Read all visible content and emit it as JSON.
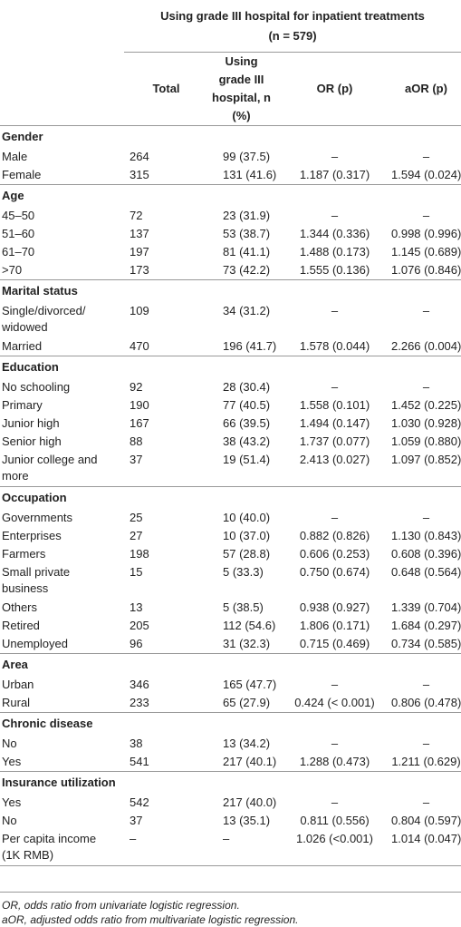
{
  "header": {
    "title": "Using grade III hospital for inpatient treatments",
    "subtitle": "(n = 579)",
    "columns": [
      "Total",
      "Using grade III hospital, n (%)",
      "OR (p)",
      "aOR (p)"
    ]
  },
  "sections": [
    {
      "title": "Gender",
      "rows": [
        {
          "label": "Male",
          "cells": [
            "264",
            "99 (37.5)",
            "–",
            "–"
          ]
        },
        {
          "label": "Female",
          "cells": [
            "315",
            "131 (41.6)",
            "1.187 (0.317)",
            "1.594 (0.024)"
          ]
        }
      ]
    },
    {
      "title": "Age",
      "rows": [
        {
          "label": "45–50",
          "cells": [
            "72",
            "23 (31.9)",
            "–",
            "–"
          ]
        },
        {
          "label": "51–60",
          "cells": [
            "137",
            "53 (38.7)",
            "1.344 (0.336)",
            "0.998 (0.996)"
          ]
        },
        {
          "label": "61–70",
          "cells": [
            "197",
            "81 (41.1)",
            "1.488 (0.173)",
            "1.145 (0.689)"
          ]
        },
        {
          "label": ">70",
          "cells": [
            "173",
            "73 (42.2)",
            "1.555 (0.136)",
            "1.076 (0.846)"
          ]
        }
      ]
    },
    {
      "title": "Marital status",
      "rows": [
        {
          "label": [
            "Single/divorced/",
            "widowed"
          ],
          "cells": [
            "109",
            "34 (31.2)",
            "–",
            "–"
          ]
        },
        {
          "label": "Married",
          "cells": [
            "470",
            "196 (41.7)",
            "1.578 (0.044)",
            "2.266 (0.004)"
          ]
        }
      ]
    },
    {
      "title": "Education",
      "rows": [
        {
          "label": "No schooling",
          "cells": [
            "92",
            "28 (30.4)",
            "–",
            "–"
          ]
        },
        {
          "label": "Primary",
          "cells": [
            "190",
            "77 (40.5)",
            "1.558 (0.101)",
            "1.452 (0.225)"
          ]
        },
        {
          "label": "Junior high",
          "cells": [
            "167",
            "66 (39.5)",
            "1.494 (0.147)",
            "1.030 (0.928)"
          ]
        },
        {
          "label": "Senior high",
          "cells": [
            "88",
            "38 (43.2)",
            "1.737 (0.077)",
            "1.059 (0.880)"
          ]
        },
        {
          "label": [
            "Junior college and",
            "more"
          ],
          "cells": [
            "37",
            "19 (51.4)",
            "2.413 (0.027)",
            "1.097 (0.852)"
          ]
        }
      ]
    },
    {
      "title": "Occupation",
      "rows": [
        {
          "label": "Governments",
          "cells": [
            "25",
            "10 (40.0)",
            "–",
            "–"
          ]
        },
        {
          "label": "Enterprises",
          "cells": [
            "27",
            "10 (37.0)",
            "0.882 (0.826)",
            "1.130 (0.843)"
          ]
        },
        {
          "label": "Farmers",
          "cells": [
            "198",
            "57 (28.8)",
            "0.606 (0.253)",
            "0.608 (0.396)"
          ]
        },
        {
          "label": [
            "Small private",
            "business"
          ],
          "cells": [
            "15",
            "5 (33.3)",
            "0.750 (0.674)",
            "0.648 (0.564)"
          ]
        },
        {
          "label": "Others",
          "cells": [
            "13",
            "5 (38.5)",
            "0.938 (0.927)",
            "1.339 (0.704)"
          ]
        },
        {
          "label": "Retired",
          "cells": [
            "205",
            "112 (54.6)",
            "1.806 (0.171)",
            "1.684 (0.297)"
          ]
        },
        {
          "label": "Unemployed",
          "cells": [
            "96",
            "31 (32.3)",
            "0.715 (0.469)",
            "0.734 (0.585)"
          ]
        }
      ]
    },
    {
      "title": "Area",
      "rows": [
        {
          "label": "Urban",
          "cells": [
            "346",
            "165 (47.7)",
            "–",
            "–"
          ]
        },
        {
          "label": "Rural",
          "cells": [
            "233",
            "65 (27.9)",
            "0.424 (< 0.001)",
            "0.806 (0.478)"
          ]
        }
      ]
    },
    {
      "title": "Chronic disease",
      "rows": [
        {
          "label": "No",
          "cells": [
            "38",
            "13 (34.2)",
            "–",
            "–"
          ]
        },
        {
          "label": "Yes",
          "cells": [
            "541",
            "217 (40.1)",
            "1.288 (0.473)",
            "1.211 (0.629)"
          ]
        }
      ]
    },
    {
      "title": "Insurance utilization",
      "rows": [
        {
          "label": "Yes",
          "cells": [
            "542",
            "217 (40.0)",
            "–",
            "–"
          ]
        },
        {
          "label": "No",
          "cells": [
            "37",
            "13 (35.1)",
            "0.811 (0.556)",
            "0.804 (0.597)"
          ]
        },
        {
          "label": [
            "Per capita income",
            "(1K RMB)"
          ],
          "cells": [
            "–",
            "–",
            "1.026 (<0.001)",
            "1.014 (0.047)"
          ]
        }
      ]
    }
  ],
  "footnotes": [
    "OR, odds ratio from univariate logistic regression.",
    "aOR, adjusted odds ratio from multivariate logistic regression."
  ]
}
